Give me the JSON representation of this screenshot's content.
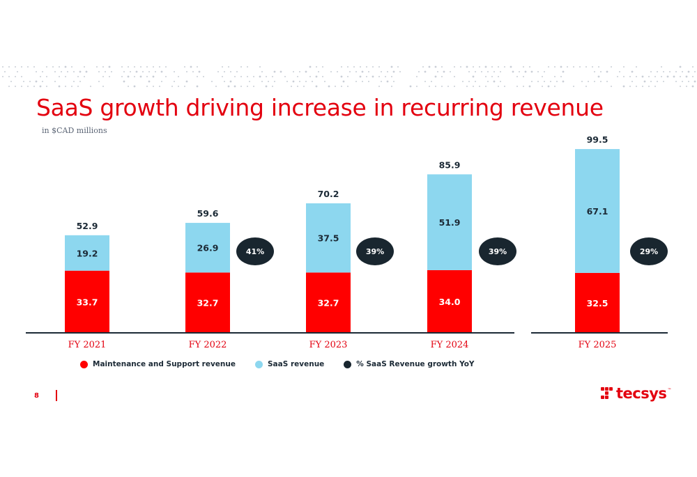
{
  "header": {
    "title": "SaaS growth driving increase in recurring revenue",
    "subtitle": "in $CAD millions"
  },
  "colors": {
    "maintenance": "#ff0000",
    "saas": "#8dd7ef",
    "growth": "#19262f",
    "accent": "#e3000f"
  },
  "chart_data": {
    "type": "bar",
    "stacked": true,
    "categories": [
      "FY 2021",
      "FY 2022",
      "FY 2023",
      "FY 2024",
      "FY 2025"
    ],
    "series": [
      {
        "name": "Maintenance and Support revenue",
        "values": [
          33.7,
          32.7,
          32.7,
          34.0,
          32.5
        ]
      },
      {
        "name": "SaaS revenue",
        "values": [
          19.2,
          26.9,
          37.5,
          51.9,
          67.1
        ]
      }
    ],
    "totals": [
      52.9,
      59.6,
      70.2,
      85.9,
      99.5
    ],
    "growth": {
      "name": "% SaaS Revenue growth YoY",
      "labels": [
        "41%",
        "39%",
        "39%",
        "29%"
      ]
    },
    "ylim": [
      0,
      100
    ],
    "grid": false,
    "legend_position": "bottom"
  },
  "legend": {
    "items": [
      {
        "label": "Maintenance and Support revenue",
        "color": "#ff0000"
      },
      {
        "label": "SaaS revenue",
        "color": "#8dd7ef"
      },
      {
        "label": "% SaaS Revenue growth YoY",
        "color": "#19262f"
      }
    ]
  },
  "footer": {
    "page_number": "8",
    "logo_text": "tecsys",
    "logo_tm": "™"
  }
}
